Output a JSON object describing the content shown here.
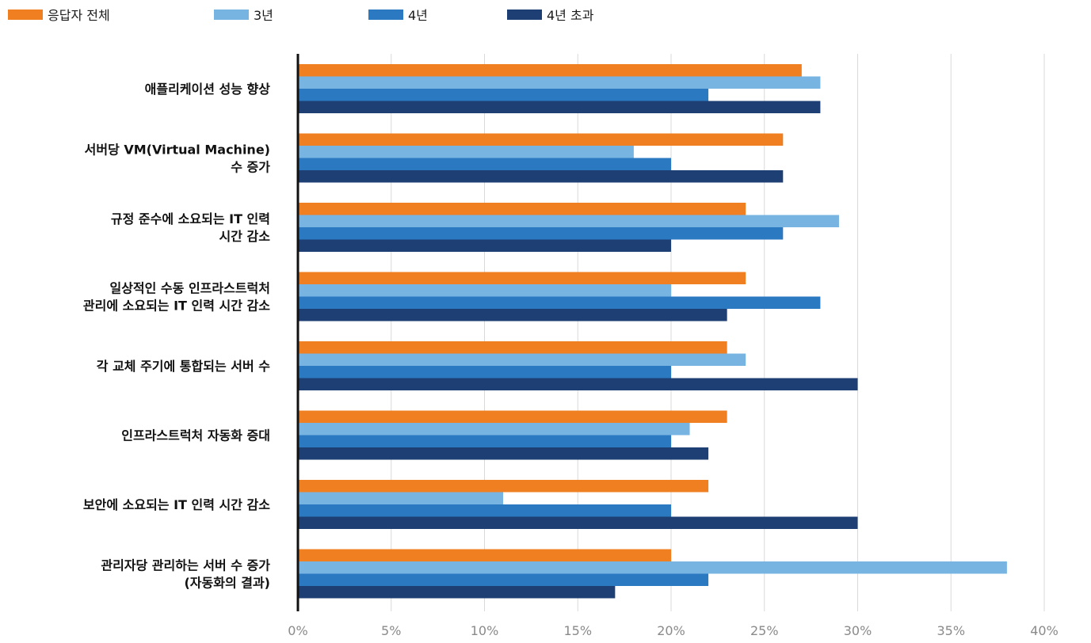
{
  "chart_data": {
    "type": "bar",
    "orientation": "horizontal",
    "categories": [
      [
        "애플리케이션 성능 향상"
      ],
      [
        "서버당 VM(Virtual Machine)",
        "수 증가"
      ],
      [
        "규정 준수에 소요되는 IT 인력",
        "시간 감소"
      ],
      [
        "일상적인 수동 인프라스트럭처",
        "관리에 소요되는 IT 인력 시간 감소"
      ],
      [
        "각 교체 주기에 통합되는 서버 수"
      ],
      [
        "인프라스트럭처 자동화 증대"
      ],
      [
        "보안에 소요되는 IT 인력 시간 감소"
      ],
      [
        "관리자당 관리하는 서버 수 증가",
        "(자동화의 결과)"
      ]
    ],
    "series": [
      {
        "name": "응답자 전체",
        "color": "#f07f22",
        "values": [
          27,
          26,
          24,
          24,
          23,
          23,
          22,
          20
        ]
      },
      {
        "name": "3년",
        "color": "#78b4e1",
        "values": [
          28,
          18,
          29,
          20,
          24,
          21,
          11,
          38
        ]
      },
      {
        "name": "4년",
        "color": "#2b7ac1",
        "values": [
          22,
          20,
          26,
          28,
          20,
          20,
          20,
          22
        ]
      },
      {
        "name": "4년 초과",
        "color": "#1d3f73",
        "values": [
          28,
          26,
          20,
          23,
          30,
          22,
          30,
          17
        ]
      }
    ],
    "xlim": [
      0,
      40
    ],
    "xticks": [
      0,
      5,
      10,
      15,
      20,
      25,
      30,
      35,
      40
    ],
    "xtick_labels": [
      "0%",
      "5%",
      "10%",
      "15%",
      "20%",
      "25%",
      "30%",
      "35%",
      "40%"
    ],
    "grid": "vertical",
    "legend_position": "top-left",
    "title": "",
    "xlabel": "",
    "ylabel": ""
  }
}
